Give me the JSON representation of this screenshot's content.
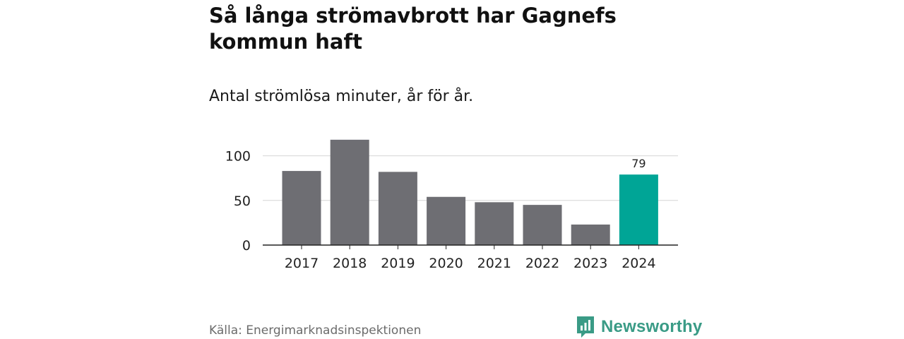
{
  "header": {
    "title": "Så långa strömavbrott har Gagnefs kommun haft",
    "subtitle": "Antal strömlösa minuter, år för år."
  },
  "footer": {
    "source": "Källa: Energimarknadsinspektionen",
    "brand": "Newsworthy"
  },
  "colors": {
    "bar": "#6e6e73",
    "highlight": "#00a596",
    "brand": "#3a9b86"
  },
  "icons": {
    "brand_logo": "newsworthy-logo-icon"
  },
  "chart_data": {
    "type": "bar",
    "categories": [
      "2017",
      "2018",
      "2019",
      "2020",
      "2021",
      "2022",
      "2023",
      "2024"
    ],
    "values": [
      83,
      118,
      82,
      54,
      48,
      45,
      23,
      79
    ],
    "highlight_index": 7,
    "data_labels": [
      {
        "index": 7,
        "text": "79"
      }
    ],
    "ylim": [
      0,
      125
    ],
    "yticks": [
      0,
      50,
      100
    ],
    "grid": true
  }
}
